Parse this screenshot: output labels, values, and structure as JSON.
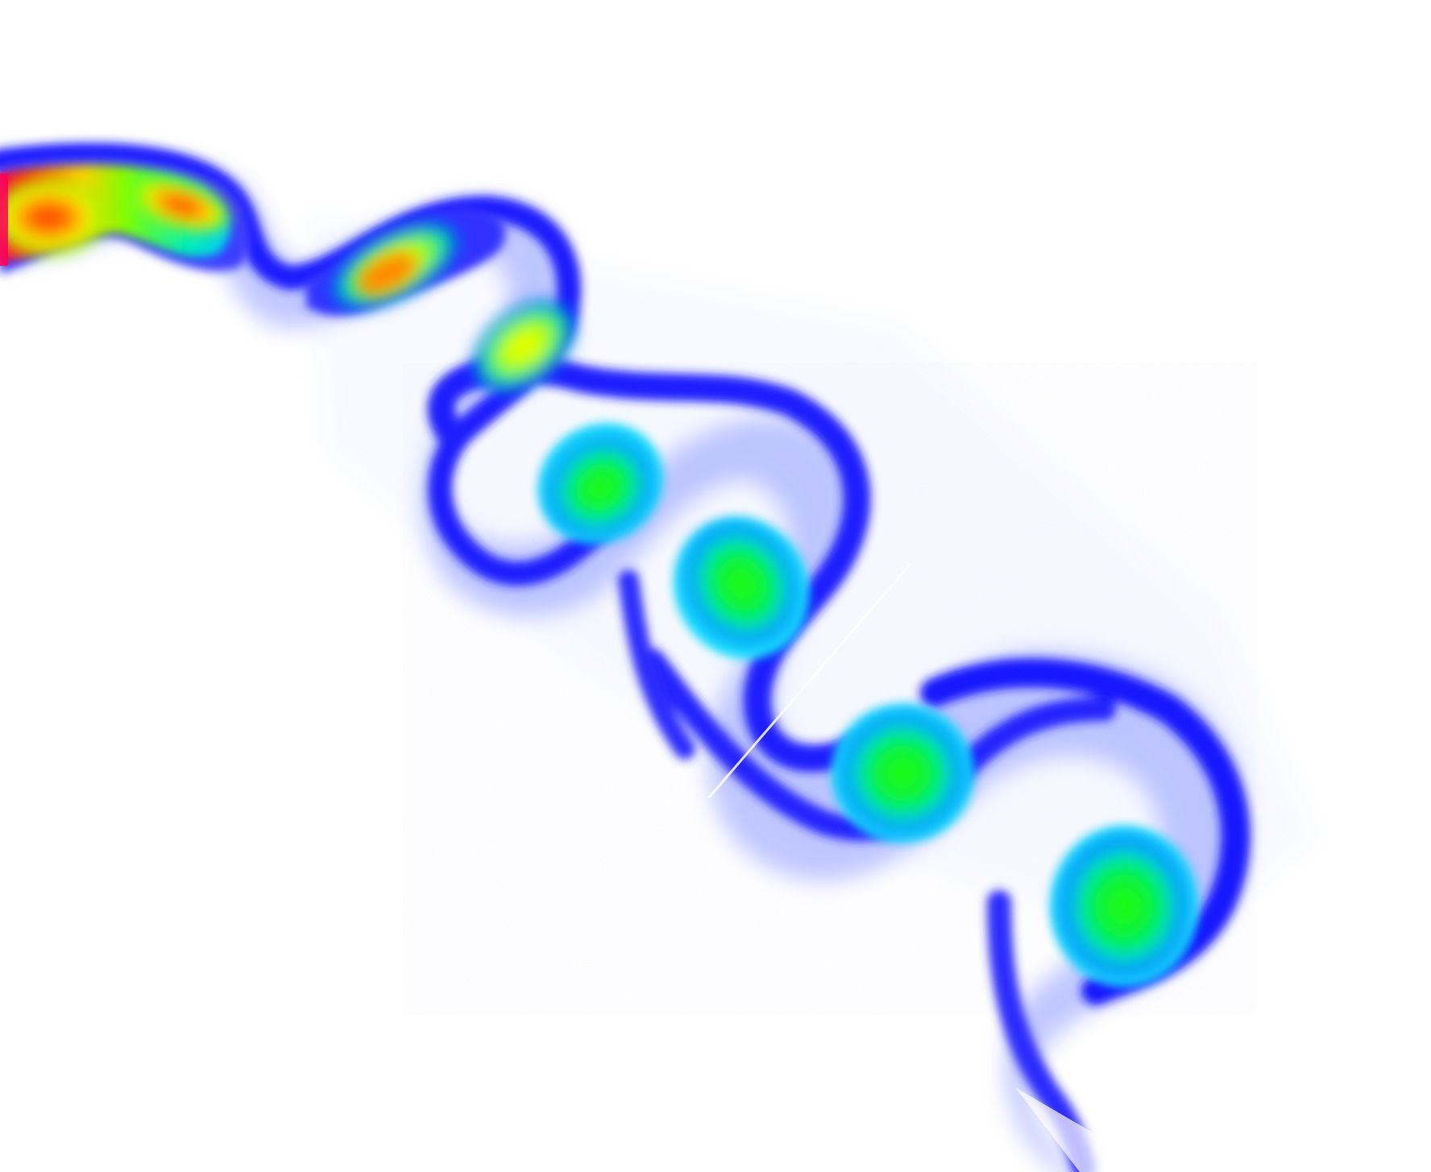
{
  "image": {
    "kind": "flow-visualization",
    "subject": "vortex-street-wake",
    "colormap": [
      "#ff0040",
      "#ff4000",
      "#ffff00",
      "#00ff00",
      "#00e5ff",
      "#0000ff",
      "#ffffff"
    ]
  }
}
